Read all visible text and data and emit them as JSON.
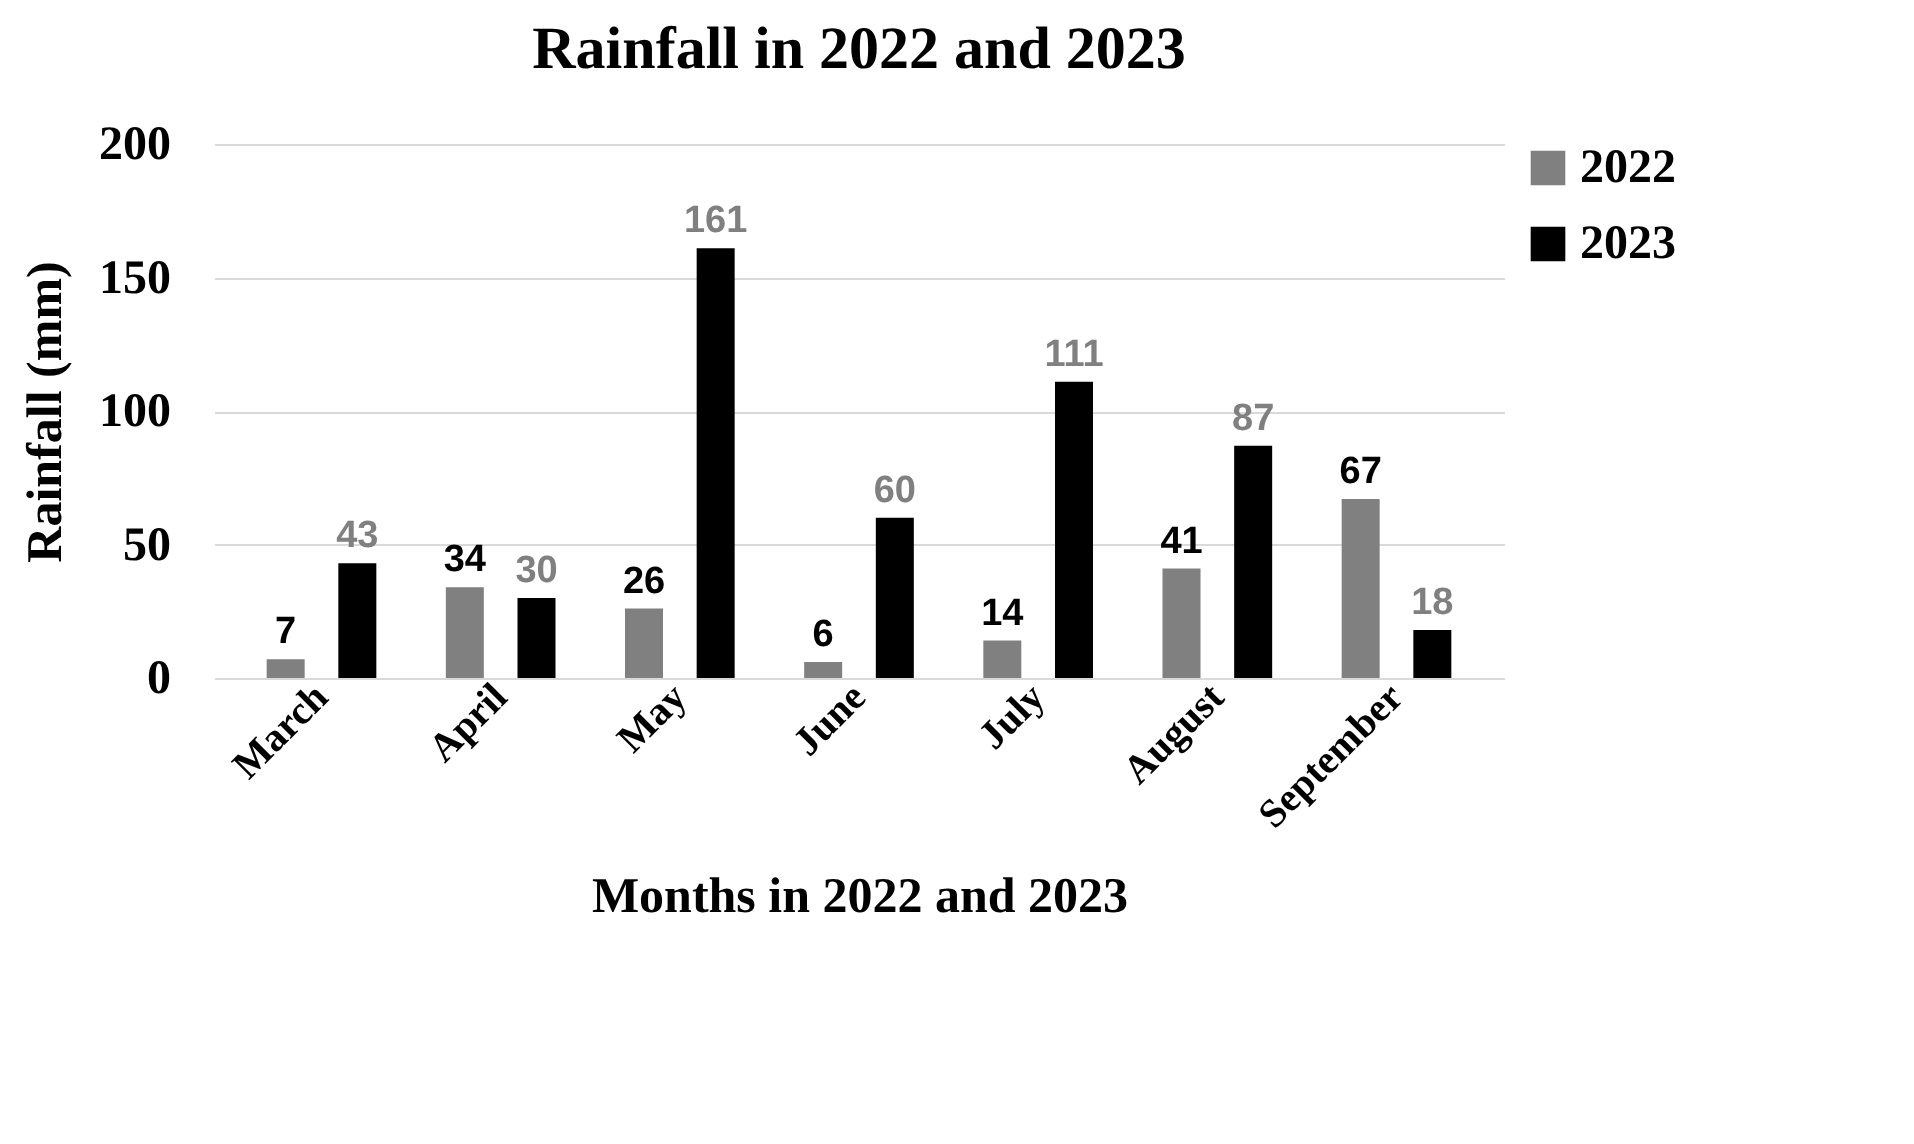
{
  "chart_data": {
    "type": "bar",
    "title": "Rainfall in 2022 and 2023",
    "xlabel": "Months in 2022 and 2023",
    "ylabel": "Rainfall (mm)",
    "categories": [
      "March",
      "April",
      "May",
      "June",
      "July",
      "August",
      "September"
    ],
    "series": [
      {
        "name": "2022",
        "color": "#808080",
        "values": [
          7,
          34,
          26,
          6,
          14,
          41,
          67
        ]
      },
      {
        "name": "2023",
        "color": "#000000",
        "values": [
          43,
          30,
          161,
          60,
          111,
          87,
          18
        ]
      }
    ],
    "ylim": [
      0,
      200
    ],
    "yticks": [
      0,
      50,
      100,
      150,
      200
    ],
    "grid": "y",
    "legend": "right",
    "data_labels": true
  }
}
